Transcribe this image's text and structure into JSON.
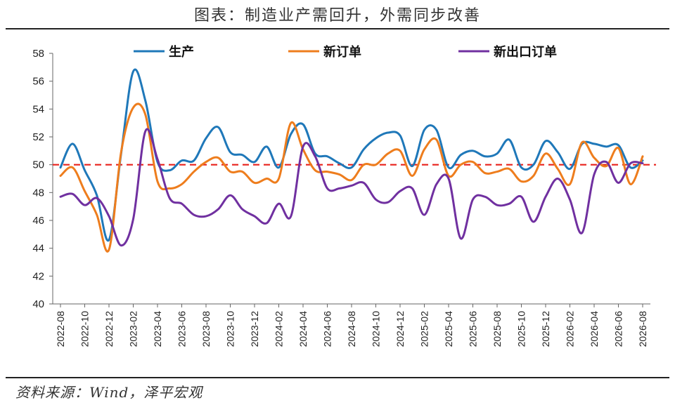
{
  "header": {
    "title": "图表：制造业产需回升，外需同步改善"
  },
  "footer": {
    "source": "资料来源：Wind，泽平宏观"
  },
  "chart_data": {
    "type": "line",
    "title": "图表：制造业产需回升，外需同步改善",
    "xlabel": "",
    "ylabel": "",
    "ylim": [
      40,
      58
    ],
    "yticks": [
      40,
      42,
      44,
      46,
      48,
      50,
      52,
      54,
      56,
      58
    ],
    "xlim": [
      0,
      48
    ],
    "xticks": [
      {
        "i": 0,
        "label": "2022-08"
      },
      {
        "i": 2,
        "label": "2022-10"
      },
      {
        "i": 4,
        "label": "2022-12"
      },
      {
        "i": 6,
        "label": "2023-02"
      },
      {
        "i": 8,
        "label": "2023-04"
      },
      {
        "i": 10,
        "label": "2023-06"
      },
      {
        "i": 12,
        "label": "2023-08"
      },
      {
        "i": 14,
        "label": "2023-10"
      },
      {
        "i": 16,
        "label": "2023-12"
      },
      {
        "i": 18,
        "label": "2024-02"
      },
      {
        "i": 20,
        "label": "2024-04"
      },
      {
        "i": 22,
        "label": "2024-06"
      },
      {
        "i": 24,
        "label": "2024-08"
      },
      {
        "i": 26,
        "label": "2024-10"
      },
      {
        "i": 28,
        "label": "2024-12"
      },
      {
        "i": 30,
        "label": "2025-02"
      },
      {
        "i": 32,
        "label": "2025-04"
      },
      {
        "i": 34,
        "label": "2025-06"
      },
      {
        "i": 36,
        "label": "2025-08"
      },
      {
        "i": 38,
        "label": "2025-10"
      },
      {
        "i": 40,
        "label": "2025-12"
      },
      {
        "i": 42,
        "label": "2026-02"
      },
      {
        "i": 44,
        "label": "2026-04"
      },
      {
        "i": 46,
        "label": "2026-06"
      },
      {
        "i": 48,
        "label": "2026-08"
      }
    ],
    "reference_line": {
      "y": 50,
      "color": "#e8211c",
      "style": "dashed"
    },
    "legend": {
      "placement": "top"
    },
    "grid": false,
    "series": [
      {
        "name": "生产",
        "color": "#1f78b9",
        "values": [
          49.8,
          51.5,
          49.6,
          47.8,
          44.6,
          50.8,
          56.7,
          54.6,
          50.2,
          49.6,
          50.3,
          50.3,
          51.9,
          52.7,
          50.9,
          50.7,
          50.2,
          51.3,
          49.8,
          52.2,
          52.9,
          50.8,
          50.6,
          50.1,
          49.8,
          51.1,
          51.9,
          52.3,
          52.1,
          49.9,
          52.5,
          52.5,
          49.8,
          50.7,
          51.0,
          50.6,
          50.8,
          51.8,
          49.8,
          50.0,
          51.7,
          50.9,
          49.7,
          51.5,
          51.5,
          51.3,
          51.4,
          49.8,
          50.3
        ]
      },
      {
        "name": "新订单",
        "color": "#ee7d1d",
        "values": [
          49.2,
          49.8,
          48.1,
          46.4,
          43.9,
          50.9,
          54.1,
          53.6,
          48.8,
          48.3,
          48.6,
          49.5,
          50.2,
          50.5,
          49.5,
          49.5,
          48.7,
          49.0,
          49.0,
          53.0,
          51.1,
          49.6,
          49.5,
          49.3,
          48.9,
          50.0,
          50.0,
          50.8,
          51.0,
          49.2,
          51.1,
          51.8,
          49.2,
          50.0,
          50.2,
          49.4,
          49.5,
          49.7,
          48.8,
          49.2,
          50.8,
          49.7,
          48.6,
          51.6,
          50.5,
          49.9,
          51.2,
          48.6,
          50.6
        ]
      },
      {
        "name": "新出口订单",
        "color": "#7030a0",
        "values": [
          47.7,
          47.9,
          47.1,
          47.6,
          46.3,
          44.2,
          46.1,
          52.4,
          50.4,
          47.6,
          47.2,
          46.4,
          46.3,
          46.8,
          47.8,
          46.8,
          46.3,
          45.8,
          47.2,
          46.3,
          51.3,
          50.6,
          48.3,
          48.3,
          48.5,
          48.7,
          47.5,
          47.3,
          48.1,
          48.3,
          46.4,
          48.6,
          49.0,
          44.7,
          47.5,
          47.7,
          47.1,
          47.2,
          47.7,
          45.9,
          47.7,
          49.0,
          47.5,
          45.1,
          49.3,
          50.2,
          48.7,
          50.1,
          50.1
        ]
      }
    ]
  }
}
